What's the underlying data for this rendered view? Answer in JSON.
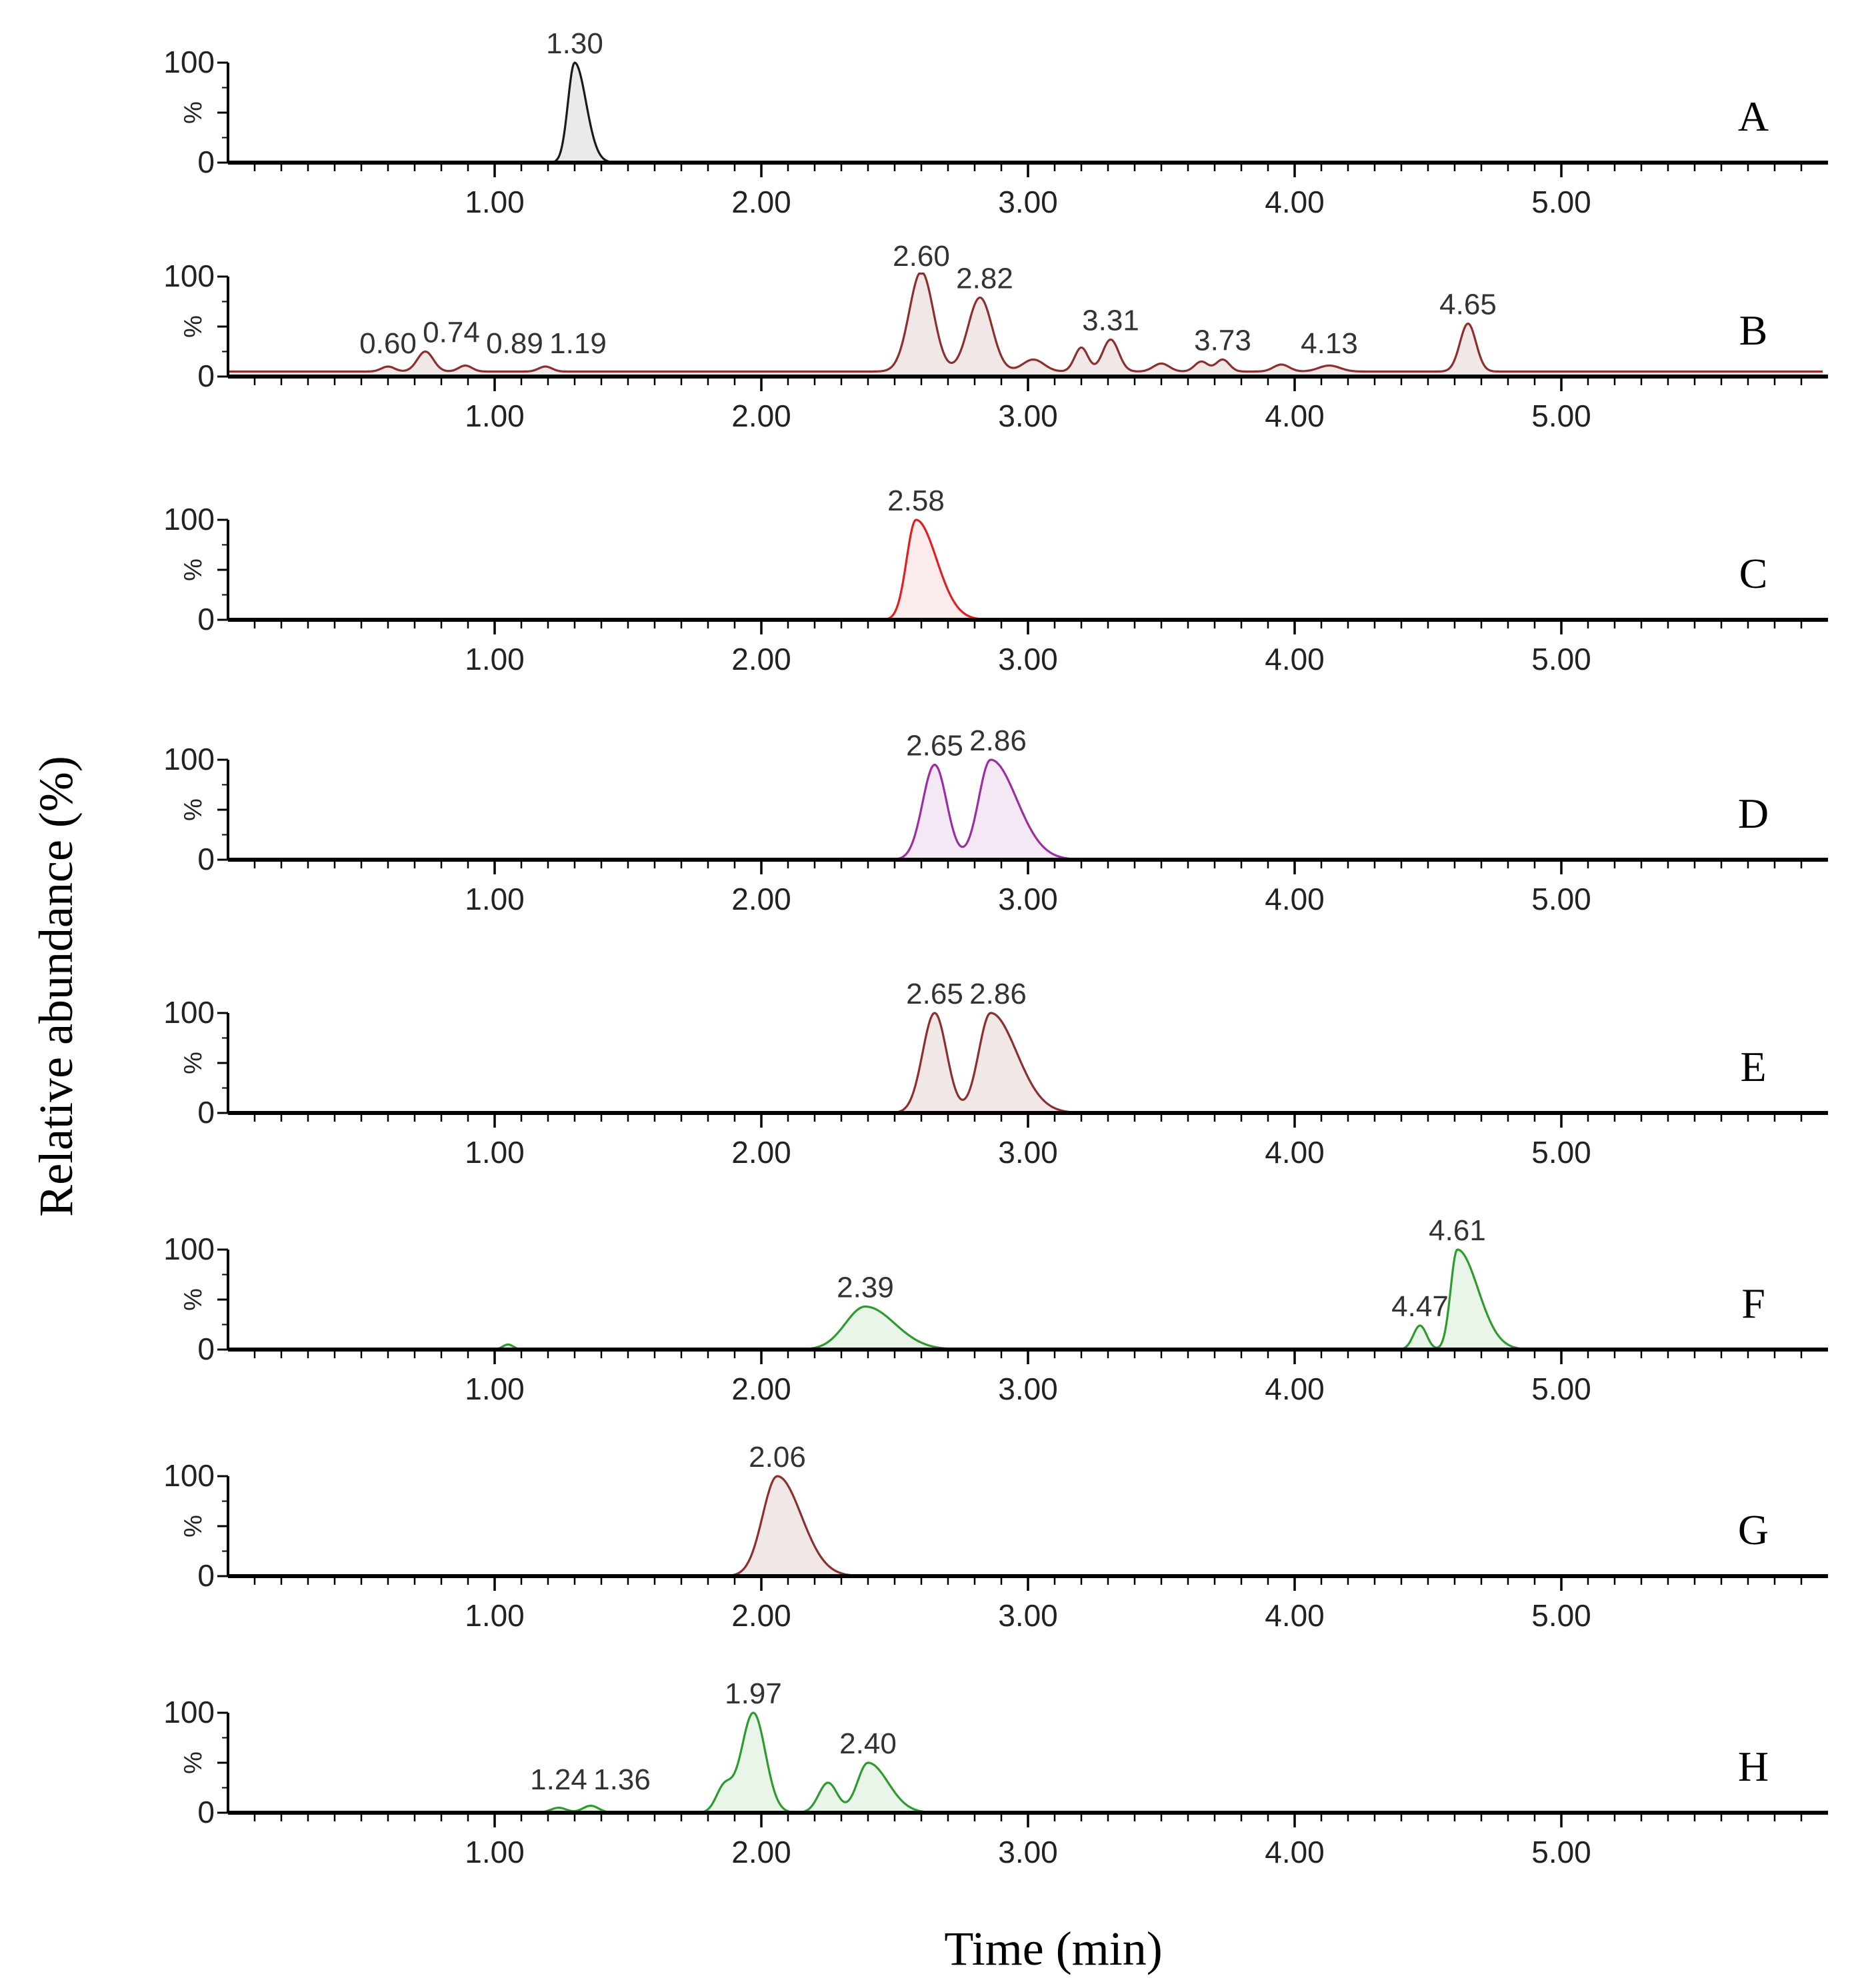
{
  "chart_data": {
    "type": "line",
    "title": "",
    "xlabel": "Time (min)",
    "ylabel": "Relative abundance (%)",
    "xlim": [
      0,
      6.0
    ],
    "ylim": [
      0,
      100
    ],
    "x_ticks": [
      "1.00",
      "2.00",
      "3.00",
      "4.00",
      "5.00"
    ],
    "x_tick_values": [
      1,
      2,
      3,
      4,
      5
    ],
    "y_ticks": [
      "0",
      "100"
    ],
    "y_unit_symbol": "%",
    "panels": [
      {
        "label": "A",
        "color": "#1a1a1a",
        "fill": "#8a8a8a",
        "peaks": [
          {
            "rt": 1.3,
            "height": 100,
            "width": 0.025,
            "tail": 0.05
          }
        ],
        "labels": [
          {
            "text": "1.30",
            "rt": 1.3
          }
        ]
      },
      {
        "label": "B",
        "color": "#8b2f2f",
        "fill": "#b07a7a",
        "baseline": 5,
        "peaks": [
          {
            "rt": 0.6,
            "height": 5,
            "width": 0.025
          },
          {
            "rt": 0.74,
            "height": 20,
            "width": 0.03
          },
          {
            "rt": 0.89,
            "height": 6,
            "width": 0.025
          },
          {
            "rt": 1.19,
            "height": 5,
            "width": 0.025
          },
          {
            "rt": 2.6,
            "height": 100,
            "width": 0.045
          },
          {
            "rt": 2.82,
            "height": 74,
            "width": 0.045
          },
          {
            "rt": 3.02,
            "height": 12,
            "width": 0.04
          },
          {
            "rt": 3.2,
            "height": 24,
            "width": 0.025
          },
          {
            "rt": 3.31,
            "height": 32,
            "width": 0.03
          },
          {
            "rt": 3.5,
            "height": 8,
            "width": 0.03
          },
          {
            "rt": 3.65,
            "height": 10,
            "width": 0.025
          },
          {
            "rt": 3.73,
            "height": 12,
            "width": 0.025
          },
          {
            "rt": 3.95,
            "height": 7,
            "width": 0.03
          },
          {
            "rt": 4.13,
            "height": 6,
            "width": 0.04
          },
          {
            "rt": 4.65,
            "height": 48,
            "width": 0.03
          }
        ],
        "labels": [
          {
            "text": "0.60",
            "rt": 0.6
          },
          {
            "text": "0.74",
            "rt": 0.74
          },
          {
            "text": "0.89",
            "rt": 0.89
          },
          {
            "text": "1.19",
            "rt": 1.19
          },
          {
            "text": "2.60",
            "rt": 2.6
          },
          {
            "text": "2.82",
            "rt": 2.82
          },
          {
            "text": "3.31",
            "rt": 3.31
          },
          {
            "text": "3.73",
            "rt": 3.73
          },
          {
            "text": "4.13",
            "rt": 4.13
          },
          {
            "text": "4.65",
            "rt": 4.65
          }
        ]
      },
      {
        "label": "C",
        "color": "#e02020",
        "fill": "#f09090",
        "peaks": [
          {
            "rt": 2.58,
            "height": 100,
            "width": 0.035,
            "tail": 0.12
          }
        ],
        "labels": [
          {
            "text": "2.58",
            "rt": 2.58
          }
        ]
      },
      {
        "label": "D",
        "color": "#9a2fa0",
        "fill": "#c080c8",
        "peaks": [
          {
            "rt": 2.65,
            "height": 95,
            "width": 0.045
          },
          {
            "rt": 2.86,
            "height": 100,
            "width": 0.045,
            "tail": 0.15
          }
        ],
        "labels": [
          {
            "text": "2.65",
            "rt": 2.65
          },
          {
            "text": "2.86",
            "rt": 2.86
          }
        ]
      },
      {
        "label": "E",
        "color": "#8b2f2f",
        "fill": "#b07a7a",
        "peaks": [
          {
            "rt": 2.65,
            "height": 100,
            "width": 0.045
          },
          {
            "rt": 2.86,
            "height": 100,
            "width": 0.045,
            "tail": 0.15
          }
        ],
        "labels": [
          {
            "text": "2.65",
            "rt": 2.65
          },
          {
            "text": "2.86",
            "rt": 2.86
          }
        ]
      },
      {
        "label": "F",
        "color": "#2f9a2f",
        "fill": "#80c880",
        "peaks": [
          {
            "rt": 1.05,
            "height": 5,
            "width": 0.02
          },
          {
            "rt": 2.39,
            "height": 43,
            "width": 0.075,
            "tail": 0.1
          },
          {
            "rt": 4.47,
            "height": 24,
            "width": 0.025
          },
          {
            "rt": 4.61,
            "height": 100,
            "width": 0.025,
            "tail": 0.15
          }
        ],
        "labels": [
          {
            "text": "2.39",
            "rt": 2.39
          },
          {
            "text": "4.47",
            "rt": 4.47
          },
          {
            "text": "4.61",
            "rt": 4.61
          }
        ]
      },
      {
        "label": "G",
        "color": "#8b2f2f",
        "fill": "#b07a7a",
        "peaks": [
          {
            "rt": 2.06,
            "height": 100,
            "width": 0.055,
            "tail": 0.1
          }
        ],
        "labels": [
          {
            "text": "2.06",
            "rt": 2.06
          }
        ]
      },
      {
        "label": "H",
        "color": "#2f9a2f",
        "fill": "#80c880",
        "peaks": [
          {
            "rt": 1.24,
            "height": 5,
            "width": 0.03
          },
          {
            "rt": 1.36,
            "height": 7,
            "width": 0.03
          },
          {
            "rt": 1.86,
            "height": 25,
            "width": 0.03
          },
          {
            "rt": 1.97,
            "height": 100,
            "width": 0.045
          },
          {
            "rt": 2.25,
            "height": 30,
            "width": 0.035
          },
          {
            "rt": 2.4,
            "height": 50,
            "width": 0.04,
            "tail": 0.1
          }
        ],
        "labels": [
          {
            "text": "1.24",
            "rt": 1.24
          },
          {
            "text": "1.36",
            "rt": 1.36
          },
          {
            "text": "1.97",
            "rt": 1.97
          },
          {
            "text": "2.40",
            "rt": 2.4
          }
        ]
      }
    ]
  }
}
